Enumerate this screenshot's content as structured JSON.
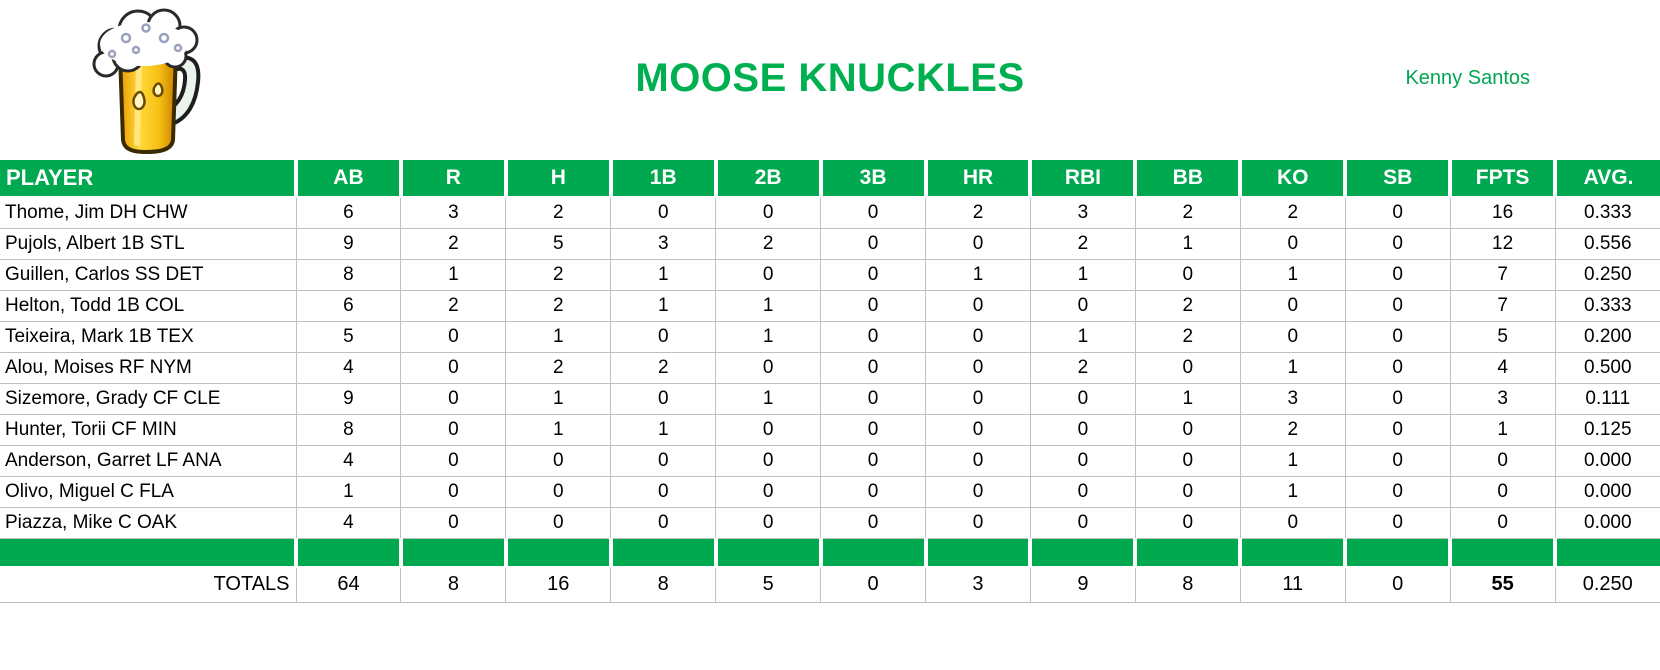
{
  "header": {
    "title": "MOOSE KNUCKLES",
    "owner": "Kenny Santos",
    "logo_icon": "beer-mug-icon"
  },
  "colors": {
    "header_green": "#00A94F",
    "title_green": "#00B050",
    "gridline": "#BFBFBF"
  },
  "table": {
    "columns": [
      "PLAYER",
      "AB",
      "R",
      "H",
      "1B",
      "2B",
      "3B",
      "HR",
      "RBI",
      "BB",
      "KO",
      "SB",
      "FPTS",
      "AVG."
    ],
    "rows": [
      {
        "player": "Thome, Jim DH CHW",
        "stats": [
          "6",
          "3",
          "2",
          "0",
          "0",
          "0",
          "2",
          "3",
          "2",
          "2",
          "0",
          "16",
          "0.333"
        ]
      },
      {
        "player": "Pujols, Albert 1B STL",
        "stats": [
          "9",
          "2",
          "5",
          "3",
          "2",
          "0",
          "0",
          "2",
          "1",
          "0",
          "0",
          "12",
          "0.556"
        ]
      },
      {
        "player": "Guillen, Carlos SS DET",
        "stats": [
          "8",
          "1",
          "2",
          "1",
          "0",
          "0",
          "1",
          "1",
          "0",
          "1",
          "0",
          "7",
          "0.250"
        ]
      },
      {
        "player": "Helton, Todd 1B COL",
        "stats": [
          "6",
          "2",
          "2",
          "1",
          "1",
          "0",
          "0",
          "0",
          "2",
          "0",
          "0",
          "7",
          "0.333"
        ]
      },
      {
        "player": "Teixeira, Mark 1B TEX",
        "stats": [
          "5",
          "0",
          "1",
          "0",
          "1",
          "0",
          "0",
          "1",
          "2",
          "0",
          "0",
          "5",
          "0.200"
        ]
      },
      {
        "player": "Alou, Moises RF NYM",
        "stats": [
          "4",
          "0",
          "2",
          "2",
          "0",
          "0",
          "0",
          "2",
          "0",
          "1",
          "0",
          "4",
          "0.500"
        ]
      },
      {
        "player": "Sizemore, Grady CF CLE",
        "stats": [
          "9",
          "0",
          "1",
          "0",
          "1",
          "0",
          "0",
          "0",
          "1",
          "3",
          "0",
          "3",
          "0.111"
        ]
      },
      {
        "player": "Hunter, Torii CF MIN",
        "stats": [
          "8",
          "0",
          "1",
          "1",
          "0",
          "0",
          "0",
          "0",
          "0",
          "2",
          "0",
          "1",
          "0.125"
        ]
      },
      {
        "player": "Anderson, Garret LF ANA",
        "stats": [
          "4",
          "0",
          "0",
          "0",
          "0",
          "0",
          "0",
          "0",
          "0",
          "1",
          "0",
          "0",
          "0.000"
        ]
      },
      {
        "player": "Olivo, Miguel C FLA",
        "stats": [
          "1",
          "0",
          "0",
          "0",
          "0",
          "0",
          "0",
          "0",
          "0",
          "1",
          "0",
          "0",
          "0.000"
        ]
      },
      {
        "player": "Piazza, Mike C OAK",
        "stats": [
          "4",
          "0",
          "0",
          "0",
          "0",
          "0",
          "0",
          "0",
          "0",
          "0",
          "0",
          "0",
          "0.000"
        ]
      }
    ],
    "totals": {
      "label": "TOTALS",
      "stats": [
        "64",
        "8",
        "16",
        "8",
        "5",
        "0",
        "3",
        "9",
        "8",
        "11",
        "0",
        "55",
        "0.250"
      ],
      "bold_stat_index": 11
    }
  }
}
